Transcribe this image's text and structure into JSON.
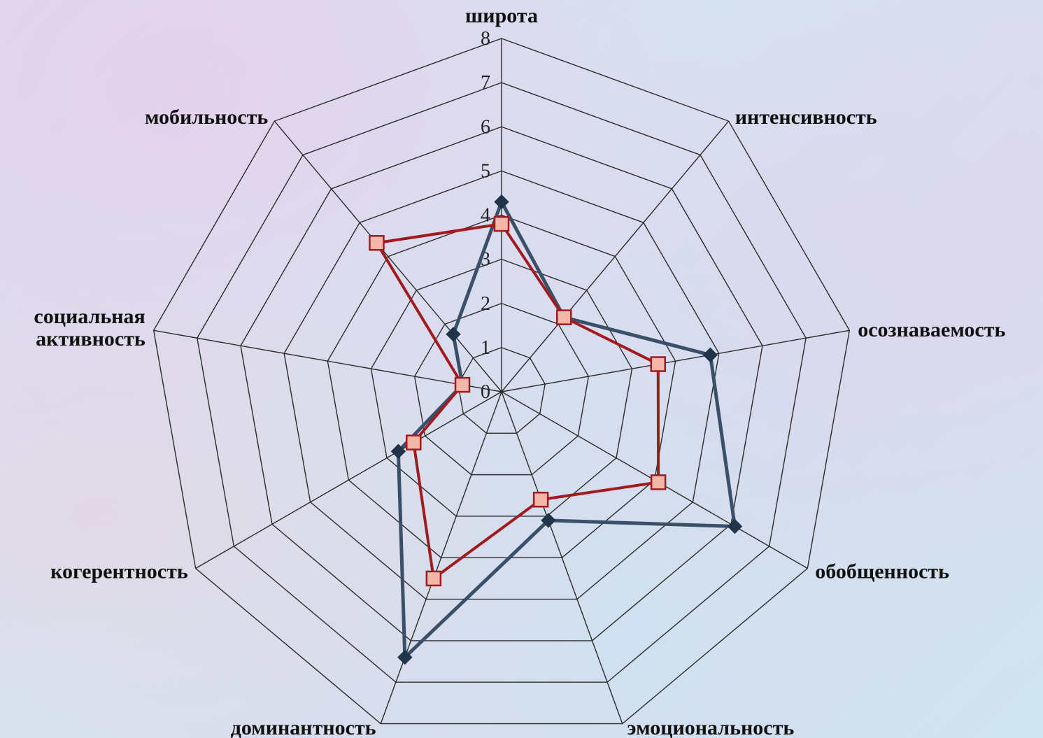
{
  "chart_data": {
    "type": "radar",
    "axes": [
      "широта",
      "интенсивность",
      "осознаваемость",
      "обобщенность",
      "эмоциональность",
      "доминантность",
      "когерентность",
      "социальная активность",
      "мобильность"
    ],
    "axis_label_lines": [
      [
        "широта"
      ],
      [
        "интенсивность"
      ],
      [
        "осознаваемость"
      ],
      [
        "обобщенность"
      ],
      [
        "эмоциональность"
      ],
      [
        "доминантность"
      ],
      [
        "когерентность"
      ],
      [
        "социальная",
        "активность"
      ],
      [
        "мобильность"
      ]
    ],
    "rlim": [
      0,
      8
    ],
    "ticks": [
      "0",
      "1",
      "2",
      "3",
      "4",
      "5",
      "6",
      "7",
      "8"
    ],
    "grid": true,
    "series": [
      {
        "values": [
          4.3,
          2.2,
          4.8,
          6.1,
          3.1,
          6.4,
          2.7,
          0.9,
          1.7
        ],
        "color": "#3a5068",
        "marker": "diamond"
      },
      {
        "values": [
          3.8,
          2.2,
          3.6,
          4.1,
          2.6,
          4.5,
          2.3,
          0.9,
          4.4
        ],
        "color": "#a31a1e",
        "marker": "square",
        "marker_fill": "#f2b7a8"
      }
    ]
  }
}
